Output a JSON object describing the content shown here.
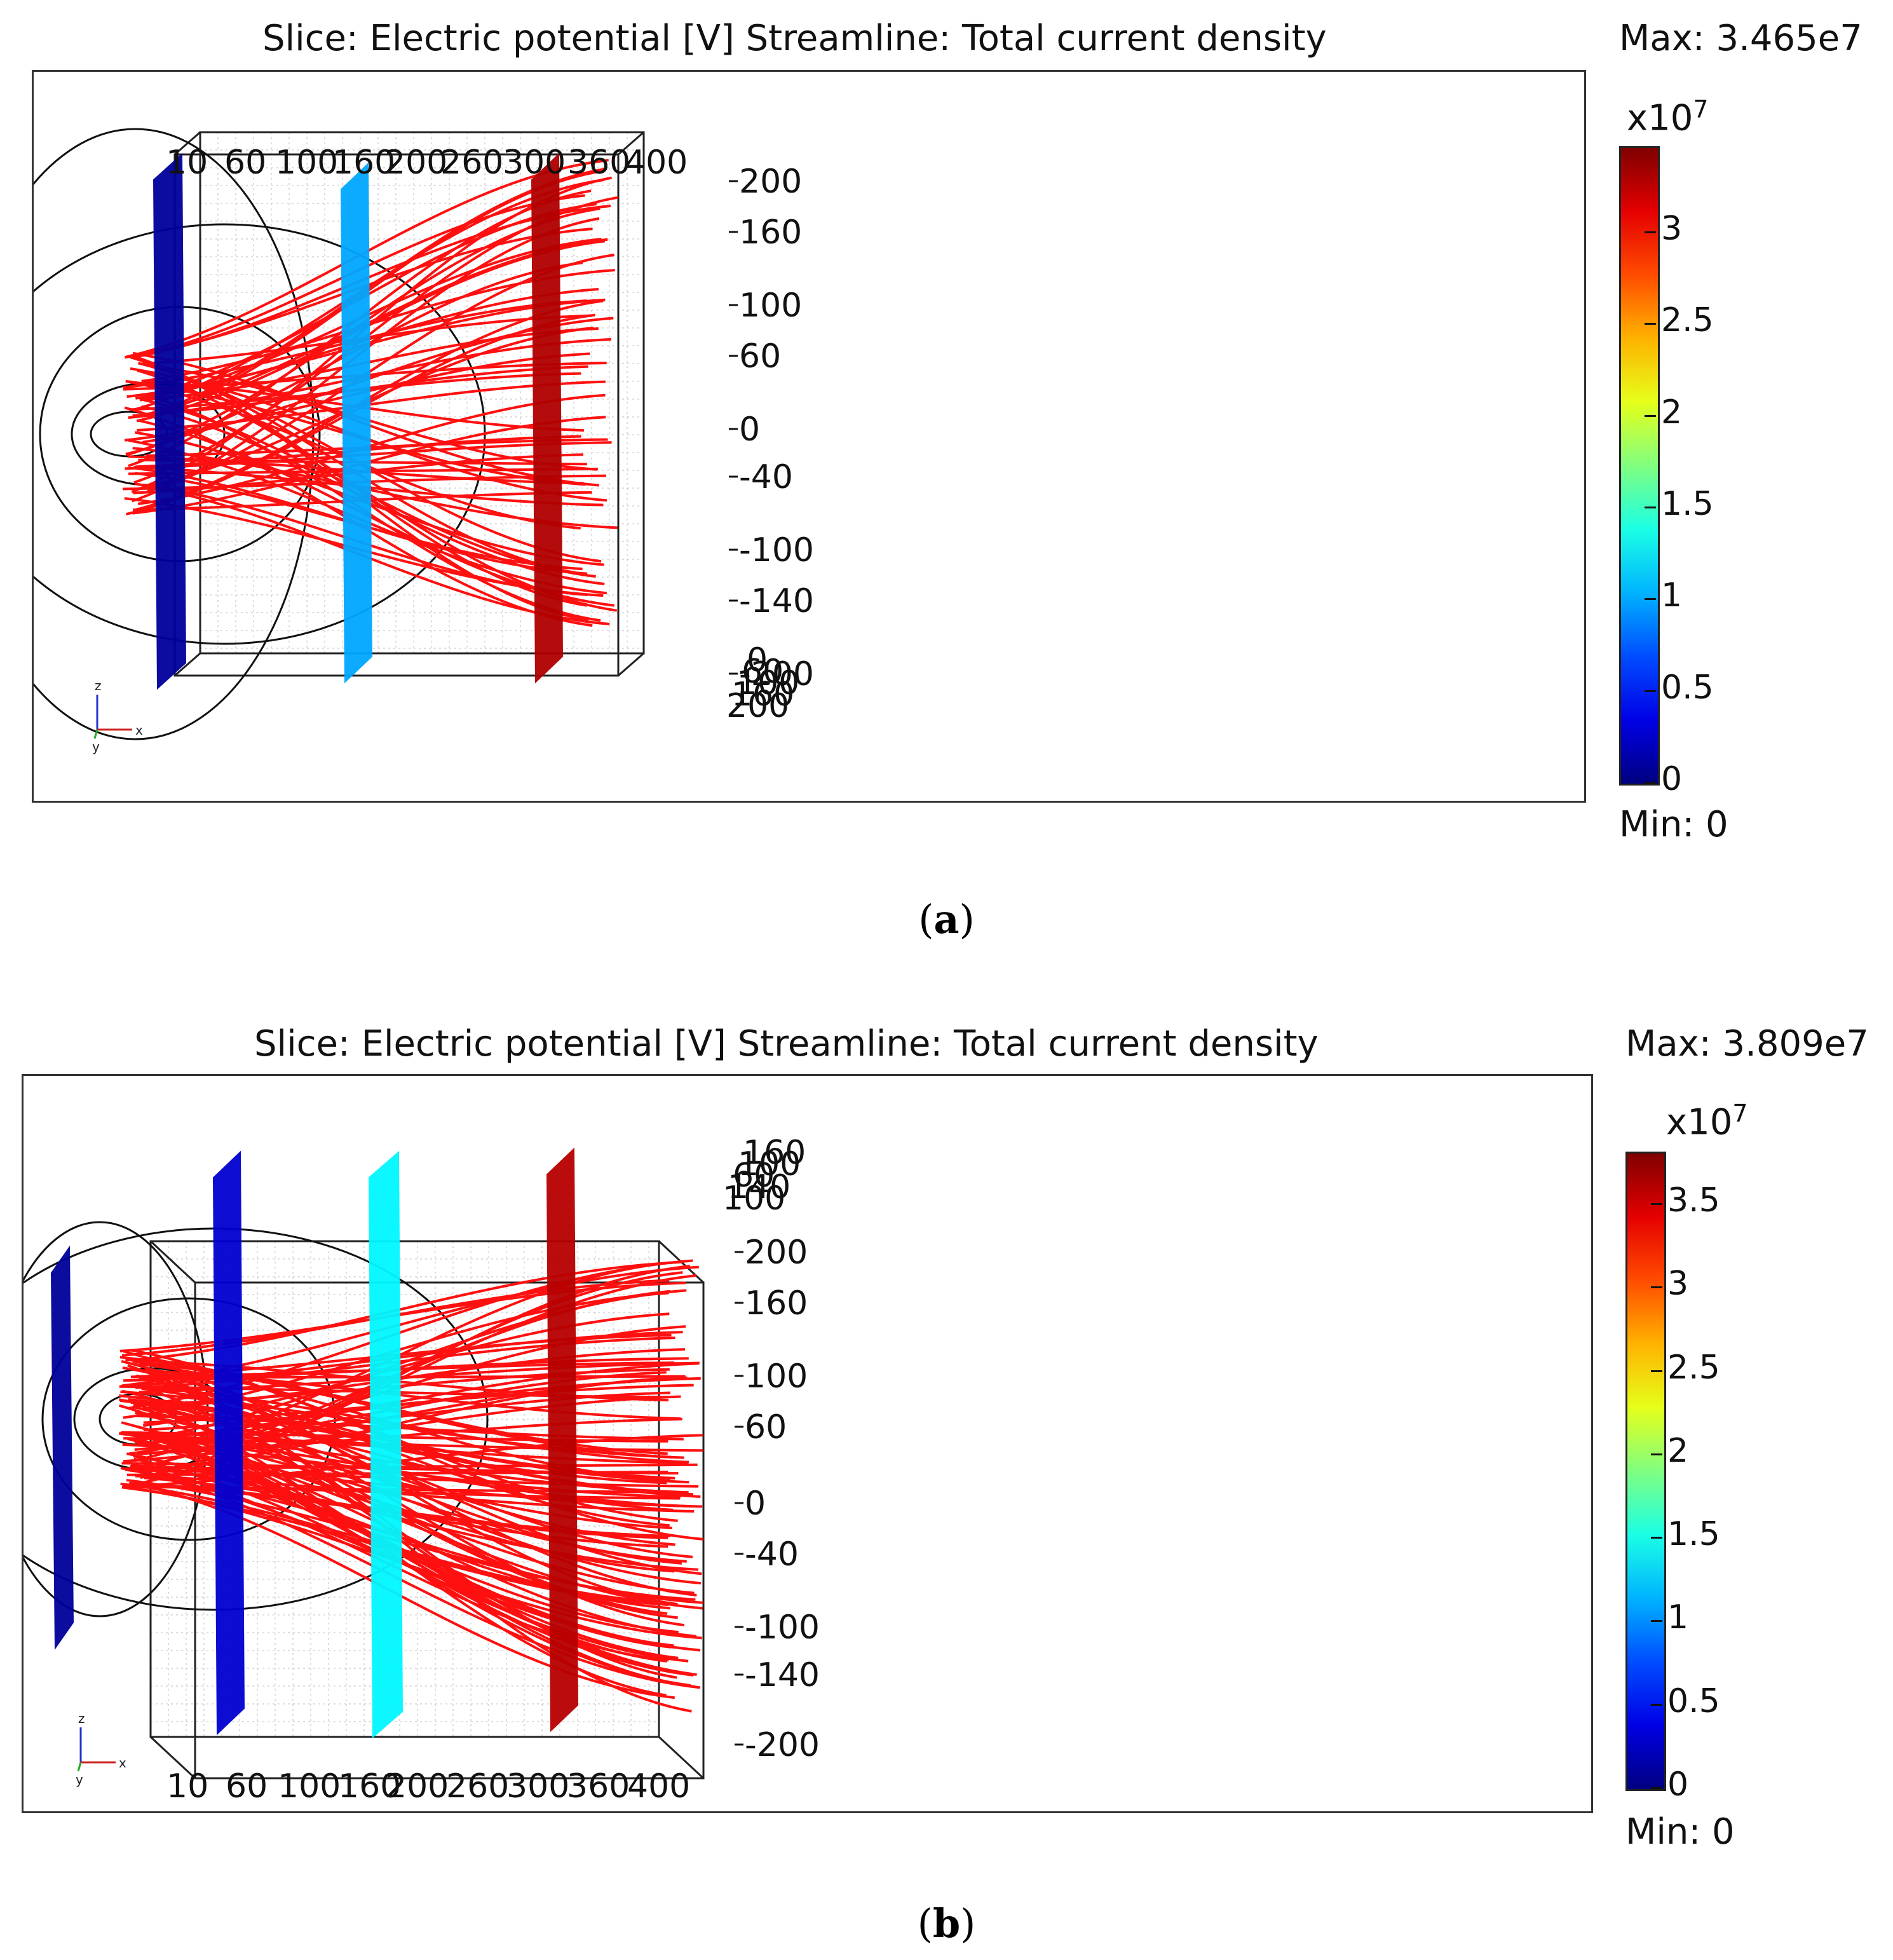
{
  "chart_data": [
    {
      "type": "slice-streamline-3d",
      "panel": "a",
      "title": "Slice: Electric potential [V]   Streamline: Total current density",
      "max_label": "Max: 3.465e7",
      "min_label": "Min: 0",
      "scale_label": "x10",
      "scale_exp": "7",
      "colorbar_ticks": [
        "3",
        "2.5",
        "2",
        "1.5",
        "1",
        "0.5",
        "0"
      ],
      "colorbar_tick_values": [
        3,
        2.5,
        2,
        1.5,
        1,
        0.5,
        0
      ],
      "colorbar_range": [
        0,
        3.465
      ],
      "x_ticks": [
        "10",
        "60",
        "100",
        "160",
        "200",
        "260",
        "300",
        "360",
        "400"
      ],
      "z_ticks": [
        "200",
        "160",
        "100",
        "60",
        "0",
        "-40",
        "-100",
        "-140",
        "-200"
      ],
      "depth_ticks": [
        "200",
        "160",
        "100",
        "60",
        "0"
      ],
      "slices": [
        {
          "x": 10,
          "value": 0.1
        },
        {
          "x": 160,
          "value": 1.0
        },
        {
          "x": 300,
          "value": 3.3
        }
      ],
      "triad": {
        "z": "z",
        "y": "y",
        "x": "x"
      },
      "caption": "a"
    },
    {
      "type": "slice-streamline-3d",
      "panel": "b",
      "title": "Slice: Electric potential [V]   Streamline: Total current density",
      "max_label": "Max: 3.809e7",
      "min_label": "Min: 0",
      "scale_label": "x10",
      "scale_exp": "7",
      "colorbar_ticks": [
        "3.5",
        "3",
        "2.5",
        "2",
        "1.5",
        "1",
        "0.5",
        "0"
      ],
      "colorbar_tick_values": [
        3.5,
        3,
        2.5,
        2,
        1.5,
        1,
        0.5,
        0
      ],
      "colorbar_range": [
        0,
        3.809
      ],
      "x_ticks": [
        "10",
        "60",
        "100",
        "160",
        "200",
        "260",
        "300",
        "360",
        "400"
      ],
      "z_ticks": [
        "200",
        "160",
        "100",
        "60",
        "0",
        "-40",
        "-100",
        "-140",
        "-200"
      ],
      "depth_ticks": [
        "100",
        "140",
        "60",
        "100",
        "160"
      ],
      "slices": [
        {
          "x": -60,
          "value": 0.1
        },
        {
          "x": 10,
          "value": 0.3
        },
        {
          "x": 160,
          "value": 1.4
        },
        {
          "x": 300,
          "value": 3.6
        }
      ],
      "triad": {
        "z": "z",
        "y": "y",
        "x": "x"
      },
      "caption": "b"
    }
  ]
}
